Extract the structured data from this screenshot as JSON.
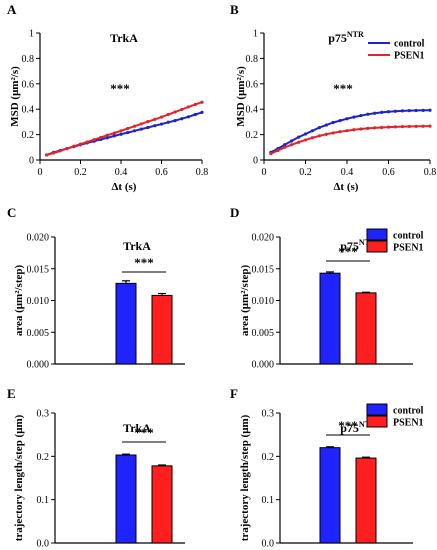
{
  "chart_data": [
    {
      "type": "line",
      "panel_label": "A",
      "title": "TrkA",
      "xlabel": "Δt (s)",
      "ylabel": "MSD (μm²/s)",
      "xlim": [
        0,
        0.8
      ],
      "ylim": [
        0,
        1
      ],
      "xticks": [
        "0",
        "0.2",
        "0.4",
        "0.6",
        "0.8"
      ],
      "yticks": [
        "0",
        "0.2",
        "0.4",
        "0.6",
        "0.8",
        "1"
      ],
      "significance": "***",
      "x": [
        0.033,
        0.067,
        0.1,
        0.133,
        0.167,
        0.2,
        0.233,
        0.267,
        0.3,
        0.333,
        0.367,
        0.4,
        0.433,
        0.467,
        0.5,
        0.533,
        0.567,
        0.6,
        0.633,
        0.667,
        0.7,
        0.733,
        0.767,
        0.8
      ],
      "series": [
        {
          "name": "control",
          "color": "#1f24c8",
          "values": [
            0.04,
            0.06,
            0.075,
            0.09,
            0.105,
            0.12,
            0.135,
            0.148,
            0.162,
            0.175,
            0.19,
            0.203,
            0.216,
            0.23,
            0.243,
            0.256,
            0.27,
            0.283,
            0.297,
            0.31,
            0.325,
            0.34,
            0.358,
            0.375
          ]
        },
        {
          "name": "PSEN1",
          "color": "#e0252b",
          "values": [
            0.04,
            0.055,
            0.072,
            0.09,
            0.108,
            0.125,
            0.142,
            0.16,
            0.177,
            0.195,
            0.212,
            0.23,
            0.248,
            0.266,
            0.284,
            0.302,
            0.32,
            0.338,
            0.358,
            0.378,
            0.398,
            0.418,
            0.438,
            0.455
          ]
        }
      ]
    },
    {
      "type": "line",
      "panel_label": "B",
      "title": "p75",
      "title_sup": "NTR",
      "xlabel": "Δt (s)",
      "ylabel": "MSD (μm²/s)",
      "xlim": [
        0,
        0.8
      ],
      "ylim": [
        0,
        1
      ],
      "xticks": [
        "0",
        "0.2",
        "0.4",
        "0.6",
        "0.8"
      ],
      "yticks": [
        "0",
        "0.2",
        "0.4",
        "0.6",
        "0.8",
        "1"
      ],
      "significance": "***",
      "legend": [
        "control",
        "PSEN1"
      ],
      "legend_position": "top-right",
      "x": [
        0.033,
        0.067,
        0.1,
        0.133,
        0.167,
        0.2,
        0.233,
        0.267,
        0.3,
        0.333,
        0.367,
        0.4,
        0.433,
        0.467,
        0.5,
        0.533,
        0.567,
        0.6,
        0.633,
        0.667,
        0.7,
        0.733,
        0.767,
        0.8
      ],
      "series": [
        {
          "name": "control",
          "color": "#1f24c8",
          "values": [
            0.06,
            0.09,
            0.12,
            0.15,
            0.18,
            0.205,
            0.23,
            0.255,
            0.275,
            0.295,
            0.31,
            0.325,
            0.338,
            0.35,
            0.36,
            0.368,
            0.375,
            0.38,
            0.384,
            0.387,
            0.389,
            0.39,
            0.391,
            0.392
          ]
        },
        {
          "name": "PSEN1",
          "color": "#e0252b",
          "values": [
            0.05,
            0.075,
            0.1,
            0.12,
            0.14,
            0.158,
            0.175,
            0.19,
            0.202,
            0.213,
            0.223,
            0.231,
            0.238,
            0.244,
            0.249,
            0.253,
            0.256,
            0.259,
            0.261,
            0.263,
            0.264,
            0.265,
            0.266,
            0.267
          ]
        }
      ]
    },
    {
      "type": "bar",
      "panel_label": "C",
      "title": "TrkA",
      "ylabel": "area (μm²/step)",
      "ylim": [
        0,
        0.02
      ],
      "yticks": [
        "0.000",
        "0.005",
        "0.010",
        "0.015",
        "0.020"
      ],
      "significance": "***",
      "categories": [
        "control",
        "PSEN1"
      ],
      "values": [
        0.0127,
        0.0108
      ],
      "errors": [
        0.0004,
        0.0003
      ],
      "colors": [
        "#1f24ff",
        "#ff1f1f"
      ]
    },
    {
      "type": "bar",
      "panel_label": "D",
      "title": "p75",
      "title_sup": "NTR",
      "ylabel": "area (μm²/step)",
      "ylim": [
        0,
        0.02
      ],
      "yticks": [
        "0.000",
        "0.005",
        "0.010",
        "0.015",
        "0.020"
      ],
      "significance": "***",
      "legend": [
        "control",
        "PSEN1"
      ],
      "legend_position": "top-right",
      "categories": [
        "control",
        "PSEN1"
      ],
      "values": [
        0.0143,
        0.0112
      ],
      "errors": [
        0.0002,
        0.0001
      ],
      "colors": [
        "#1f24ff",
        "#ff1f1f"
      ]
    },
    {
      "type": "bar",
      "panel_label": "E",
      "title": "TrkA",
      "ylabel": "trajectory length/step (μm)",
      "ylim": [
        0,
        0.3
      ],
      "yticks": [
        "0.0",
        "0.1",
        "0.2",
        "0.3"
      ],
      "significance": "***",
      "categories": [
        "control",
        "PSEN1"
      ],
      "values": [
        0.203,
        0.178
      ],
      "errors": [
        0.002,
        0.002
      ],
      "colors": [
        "#1f24ff",
        "#ff1f1f"
      ]
    },
    {
      "type": "bar",
      "panel_label": "F",
      "title": "p75",
      "title_sup": "NTR",
      "ylabel": "trajectory length/step (μm)",
      "ylim": [
        0,
        0.3
      ],
      "yticks": [
        "0.0",
        "0.1",
        "0.2",
        "0.3"
      ],
      "significance": "***",
      "legend": [
        "control",
        "PSEN1"
      ],
      "legend_position": "top-right",
      "categories": [
        "control",
        "PSEN1"
      ],
      "values": [
        0.22,
        0.196
      ],
      "errors": [
        0.002,
        0.002
      ],
      "colors": [
        "#1f24ff",
        "#ff1f1f"
      ]
    }
  ]
}
